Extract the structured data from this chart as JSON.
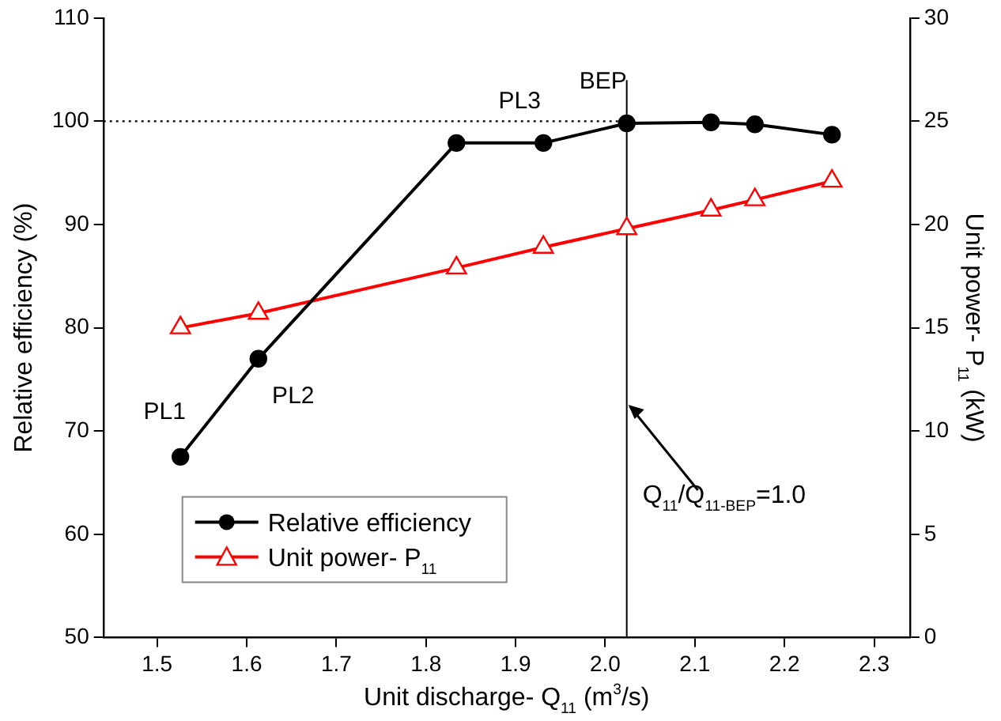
{
  "chart_data": {
    "type": "line",
    "xlabel": "Unit discharge- Q$_{11}$ (m$^{3}$/s)",
    "ylabel": "Relative efficiency (%)",
    "y2label": "Unit power- P$_{11}$ (kW)",
    "x": [
      1.526,
      1.613,
      1.834,
      1.931,
      2.024,
      2.118,
      2.167,
      2.253
    ],
    "series": [
      {
        "name": "Relative efficiency",
        "color": "#000000",
        "marker": "circle",
        "values": [
          67.5,
          77.0,
          97.9,
          97.9,
          99.8,
          99.9,
          99.7,
          98.7
        ]
      },
      {
        "name": "Unit power- P$_{11}$",
        "color": "#ff0000",
        "marker": "triangle",
        "axis": "y2",
        "values": [
          15.0,
          15.7,
          17.9,
          18.9,
          19.8,
          20.7,
          21.2,
          22.1
        ]
      }
    ],
    "xlim": [
      1.44,
      2.34
    ],
    "xticks": [
      1.5,
      1.6,
      1.7,
      1.8,
      1.9,
      {
        "value": 2,
        "label": "2.0"
      },
      2.1,
      2.2,
      2.3
    ],
    "ylim": [
      50,
      110
    ],
    "yticks": [
      50,
      60,
      70,
      80,
      90,
      100,
      110
    ],
    "y2lim": [
      0,
      30
    ],
    "y2ticks": [
      0,
      5,
      10,
      15,
      20,
      25,
      30
    ],
    "ref_lines": [
      {
        "axis": "x",
        "value": 2.024,
        "color": "#000000",
        "line_style": "solid"
      },
      {
        "axis": "y",
        "value": 100,
        "color": "#000000",
        "line_style": "dotted"
      }
    ],
    "annotations": [
      {
        "text": "PL1",
        "x": 1.526,
        "y": 67.5
      },
      {
        "text": "PL2",
        "x": 1.613,
        "y": 77.0
      },
      {
        "text": "PL3",
        "x": 1.931,
        "y": 97.9
      },
      {
        "text": "BEP",
        "x": 2.024,
        "y": 99.8
      },
      {
        "text": "Q$_{11}$/Q$_{11-BEP}$=1.0",
        "x": 2.024,
        "y": 72.7
      }
    ],
    "grid": false,
    "legend": "bottom left",
    "line_style": "solid"
  }
}
